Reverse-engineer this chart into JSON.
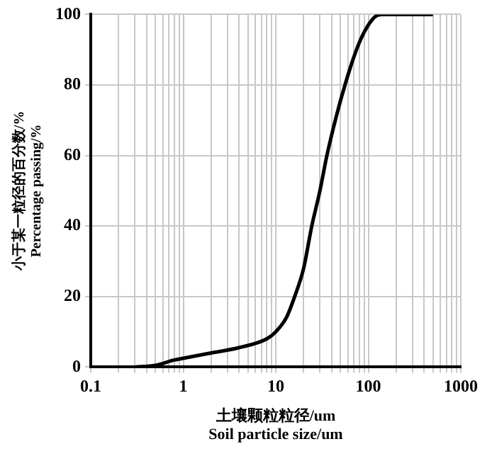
{
  "chart_data": {
    "type": "line",
    "xlabel": "土壤颗粒粒径/um\nSoil particle size/um",
    "ylabel": "小于某一粒径的百分数/%\nPercentage passing/%",
    "x": [
      0.3,
      0.5,
      0.8,
      1,
      2,
      4,
      8,
      10,
      13,
      16,
      20,
      24.5,
      30,
      35.7,
      45,
      56,
      70,
      83,
      100,
      120,
      140,
      500
    ],
    "series": [
      {
        "color": "#000000",
        "values": [
          0,
          0.5,
          2,
          2.5,
          4,
          5.5,
          8,
          10,
          14,
          20,
          28,
          40,
          50,
          60,
          71,
          80,
          88,
          93,
          97,
          99.5,
          100,
          100
        ]
      }
    ],
    "log": "x",
    "xlim": [
      0.1,
      1000
    ],
    "xticks": [
      0.1,
      {
        "value": 0.2,
        "label": null
      },
      {
        "value": 0.3,
        "label": null
      },
      {
        "value": 0.4,
        "label": null
      },
      {
        "value": 0.5,
        "label": null
      },
      {
        "value": 0.6,
        "label": null
      },
      {
        "value": 0.7,
        "label": null
      },
      {
        "value": 0.8,
        "label": null
      },
      {
        "value": 0.9,
        "label": null
      },
      1,
      {
        "value": 2,
        "label": null
      },
      {
        "value": 3,
        "label": null
      },
      {
        "value": 4,
        "label": null
      },
      {
        "value": 5,
        "label": null
      },
      {
        "value": 6,
        "label": null
      },
      {
        "value": 7,
        "label": null
      },
      {
        "value": 8,
        "label": null
      },
      {
        "value": 9,
        "label": null
      },
      10,
      {
        "value": 20,
        "label": null
      },
      {
        "value": 30,
        "label": null
      },
      {
        "value": 40,
        "label": null
      },
      {
        "value": 50,
        "label": null
      },
      {
        "value": 60,
        "label": null
      },
      {
        "value": 70,
        "label": null
      },
      {
        "value": 80,
        "label": null
      },
      {
        "value": 90,
        "label": null
      },
      100,
      {
        "value": 200,
        "label": null
      },
      {
        "value": 300,
        "label": null
      },
      {
        "value": 400,
        "label": null
      },
      {
        "value": 500,
        "label": null
      },
      {
        "value": 600,
        "label": null
      },
      {
        "value": 700,
        "label": null
      },
      {
        "value": 800,
        "label": null
      },
      {
        "value": 900,
        "label": null
      },
      1000
    ],
    "ylim": [
      0,
      100
    ],
    "yticks": [
      0,
      20,
      40,
      60,
      80,
      100
    ],
    "grid": true,
    "legend": false,
    "marker": "none",
    "line_style": "solid"
  }
}
